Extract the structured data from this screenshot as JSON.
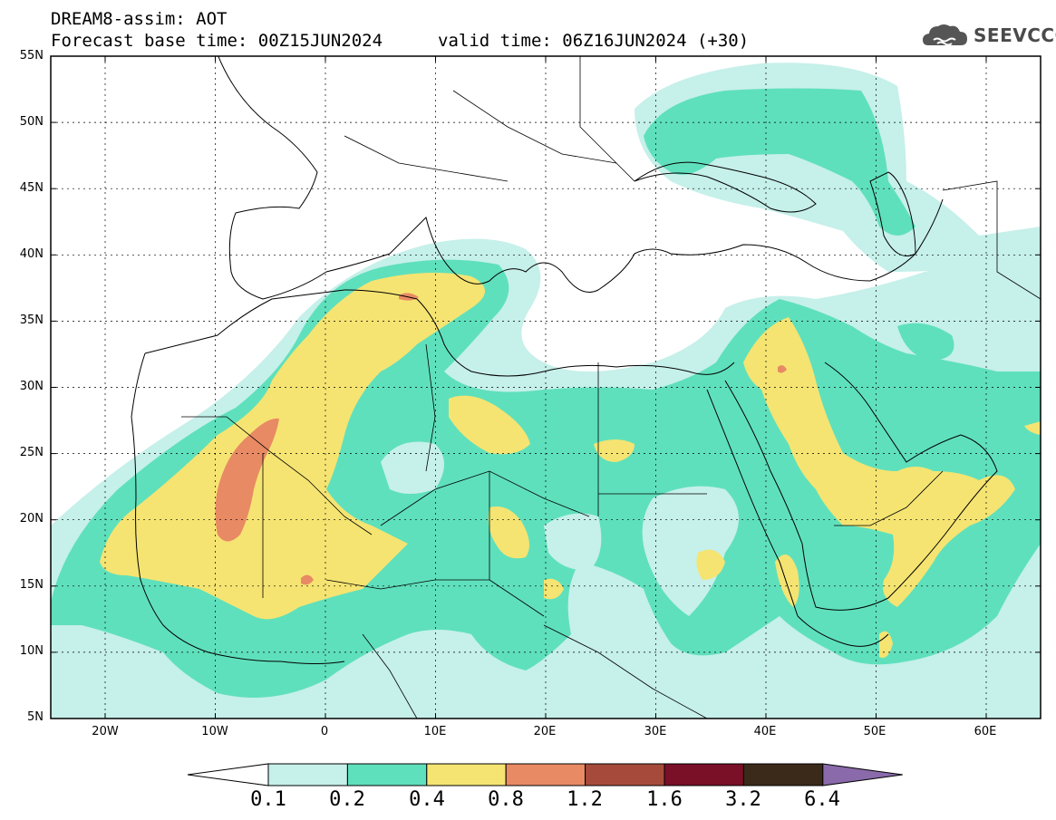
{
  "header": {
    "model_title": "DREAM8-assim: AOT",
    "base_time": "Forecast base time: 00Z15JUN2024",
    "valid_time": "valid time: 06Z16JUN2024 (+30)"
  },
  "logo": {
    "text": "SEEVCCC",
    "icon": "cloud-icon"
  },
  "axes": {
    "lat_labels": [
      "55N",
      "50N",
      "45N",
      "40N",
      "35N",
      "30N",
      "25N",
      "20N",
      "15N",
      "10N",
      "5N"
    ],
    "lon_labels": [
      "20W",
      "10W",
      "0",
      "10E",
      "20E",
      "30E",
      "40E",
      "50E",
      "60E"
    ]
  },
  "colorbar": {
    "labels": [
      "0.1",
      "0.2",
      "0.4",
      "0.8",
      "1.2",
      "1.6",
      "3.2",
      "6.4"
    ],
    "colors": [
      "#c6f0ea",
      "#5fe0bc",
      "#f5e472",
      "#e88a64",
      "#a64b3c",
      "#7a0f28",
      "#3b2a1a",
      "#8a6aaa"
    ],
    "under_color": "#ffffff"
  },
  "colors": {
    "c1": "#c6f0ea",
    "c2": "#5fe0bc",
    "c3": "#f5e472",
    "c4": "#e88a64",
    "c5": "#a64b3c"
  }
}
